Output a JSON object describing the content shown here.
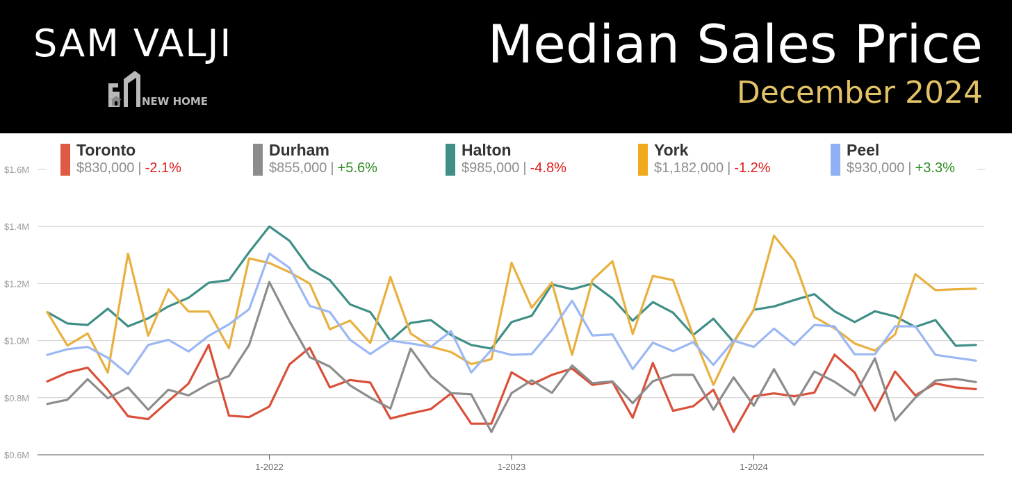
{
  "header": {
    "brand_name": "SAM VALJI",
    "brand_tag": "NEW HOME",
    "title": "Median Sales Price",
    "subtitle": "December 2024"
  },
  "legend": [
    {
      "name": "Toronto",
      "price": "$830,000",
      "separator": "|",
      "change": "-2.1%",
      "direction": "neg",
      "color": "#e05a43"
    },
    {
      "name": "Durham",
      "price": "$855,000",
      "separator": "|",
      "change": "+5.6%",
      "direction": "pos",
      "color": "#8c8c8c"
    },
    {
      "name": "Halton",
      "price": "$985,000",
      "separator": "|",
      "change": "-4.8%",
      "direction": "neg",
      "color": "#3f8f86"
    },
    {
      "name": "York",
      "price": "$1,182,000",
      "separator": "|",
      "change": "-1.2%",
      "direction": "neg",
      "color": "#f1aa1b"
    },
    {
      "name": "Peel",
      "price": "$930,000",
      "separator": "|",
      "change": "+3.3%",
      "direction": "pos",
      "color": "#8fb0f4"
    }
  ],
  "chart_data": {
    "type": "line",
    "title": "Median Sales Price",
    "subtitle": "December 2024",
    "xlabel": "",
    "ylabel": "",
    "ylim": [
      600000,
      1600000
    ],
    "yticks": [
      600000,
      800000,
      1000000,
      1200000,
      1400000,
      1600000
    ],
    "ytick_labels": [
      "$0.6M",
      "$0.8M",
      "$1.0M",
      "$1.2M",
      "$1.4M",
      "$1.6M"
    ],
    "x": [
      "2021-02",
      "2021-03",
      "2021-04",
      "2021-05",
      "2021-06",
      "2021-07",
      "2021-08",
      "2021-09",
      "2021-10",
      "2021-11",
      "2021-12",
      "2022-01",
      "2022-02",
      "2022-03",
      "2022-04",
      "2022-05",
      "2022-06",
      "2022-07",
      "2022-08",
      "2022-09",
      "2022-10",
      "2022-11",
      "2022-12",
      "2023-01",
      "2023-02",
      "2023-03",
      "2023-04",
      "2023-05",
      "2023-06",
      "2023-07",
      "2023-08",
      "2023-09",
      "2023-10",
      "2023-11",
      "2023-12",
      "2024-01",
      "2024-02",
      "2024-03",
      "2024-04",
      "2024-05",
      "2024-06",
      "2024-07",
      "2024-08",
      "2024-09",
      "2024-10",
      "2024-11",
      "2024-12"
    ],
    "xticks": [
      "2022-01",
      "2023-01",
      "2024-01"
    ],
    "xtick_labels": [
      "1-2022",
      "1-2023",
      "1-2024"
    ],
    "grid": true,
    "series": [
      {
        "name": "Toronto",
        "color": "#d9503a",
        "values": [
          857000,
          888000,
          905000,
          827000,
          735000,
          725000,
          788000,
          850000,
          985000,
          737000,
          732000,
          769000,
          917000,
          975000,
          836000,
          862000,
          853000,
          727000,
          745000,
          760000,
          815000,
          709000,
          709000,
          889000,
          847000,
          880000,
          902000,
          845000,
          855000,
          730000,
          922000,
          754000,
          770000,
          828000,
          680000,
          805000,
          815000,
          805000,
          818000,
          951000,
          888000,
          755000,
          892000,
          808000,
          850000,
          836000,
          830000
        ]
      },
      {
        "name": "Durham",
        "color": "#8c8c8c",
        "values": [
          778000,
          793000,
          865000,
          798000,
          836000,
          758000,
          828000,
          808000,
          849000,
          876000,
          985000,
          1205000,
          1068000,
          942000,
          909000,
          843000,
          800000,
          762000,
          972000,
          875000,
          816000,
          812000,
          680000,
          816000,
          861000,
          817000,
          913000,
          851000,
          857000,
          781000,
          858000,
          880000,
          880000,
          758000,
          871000,
          772000,
          900000,
          775000,
          892000,
          856000,
          808000,
          938000,
          720000,
          800000,
          860000,
          866000,
          855000
        ]
      },
      {
        "name": "Halton",
        "color": "#3f8f86",
        "values": [
          1100000,
          1060000,
          1055000,
          1112000,
          1050000,
          1078000,
          1120000,
          1150000,
          1203000,
          1212000,
          1310000,
          1400000,
          1350000,
          1252000,
          1212000,
          1127000,
          1100000,
          1000000,
          1062000,
          1072000,
          1020000,
          985000,
          972000,
          1065000,
          1087000,
          1197000,
          1180000,
          1200000,
          1148000,
          1070000,
          1135000,
          1098000,
          1020000,
          1077000,
          995000,
          1108000,
          1120000,
          1142000,
          1163000,
          1103000,
          1065000,
          1103000,
          1085000,
          1048000,
          1072000,
          982000,
          985000
        ]
      },
      {
        "name": "York",
        "color": "#e8b03f",
        "values": [
          1100000,
          983000,
          1025000,
          888000,
          1305000,
          1017000,
          1180000,
          1102000,
          1102000,
          973000,
          1288000,
          1272000,
          1240000,
          1200000,
          1040000,
          1070000,
          992000,
          1223000,
          1025000,
          979000,
          960000,
          918000,
          935000,
          1273000,
          1115000,
          1204000,
          950000,
          1212000,
          1278000,
          1023000,
          1227000,
          1212000,
          1018000,
          845000,
          993000,
          1109000,
          1368000,
          1280000,
          1083000,
          1043000,
          990000,
          965000,
          1022000,
          1233000,
          1177000,
          1180000,
          1182000
        ]
      },
      {
        "name": "Peel",
        "color": "#9bb7f4",
        "values": [
          950000,
          970000,
          978000,
          940000,
          882000,
          985000,
          1003000,
          962000,
          1017000,
          1057000,
          1110000,
          1305000,
          1255000,
          1122000,
          1100000,
          1003000,
          953000,
          1000000,
          990000,
          978000,
          1033000,
          888000,
          968000,
          950000,
          953000,
          1038000,
          1140000,
          1018000,
          1022000,
          900000,
          993000,
          963000,
          995000,
          915000,
          1000000,
          978000,
          1042000,
          985000,
          1055000,
          1050000,
          952000,
          952000,
          1050000,
          1050000,
          950000,
          940000,
          930000
        ]
      }
    ]
  }
}
